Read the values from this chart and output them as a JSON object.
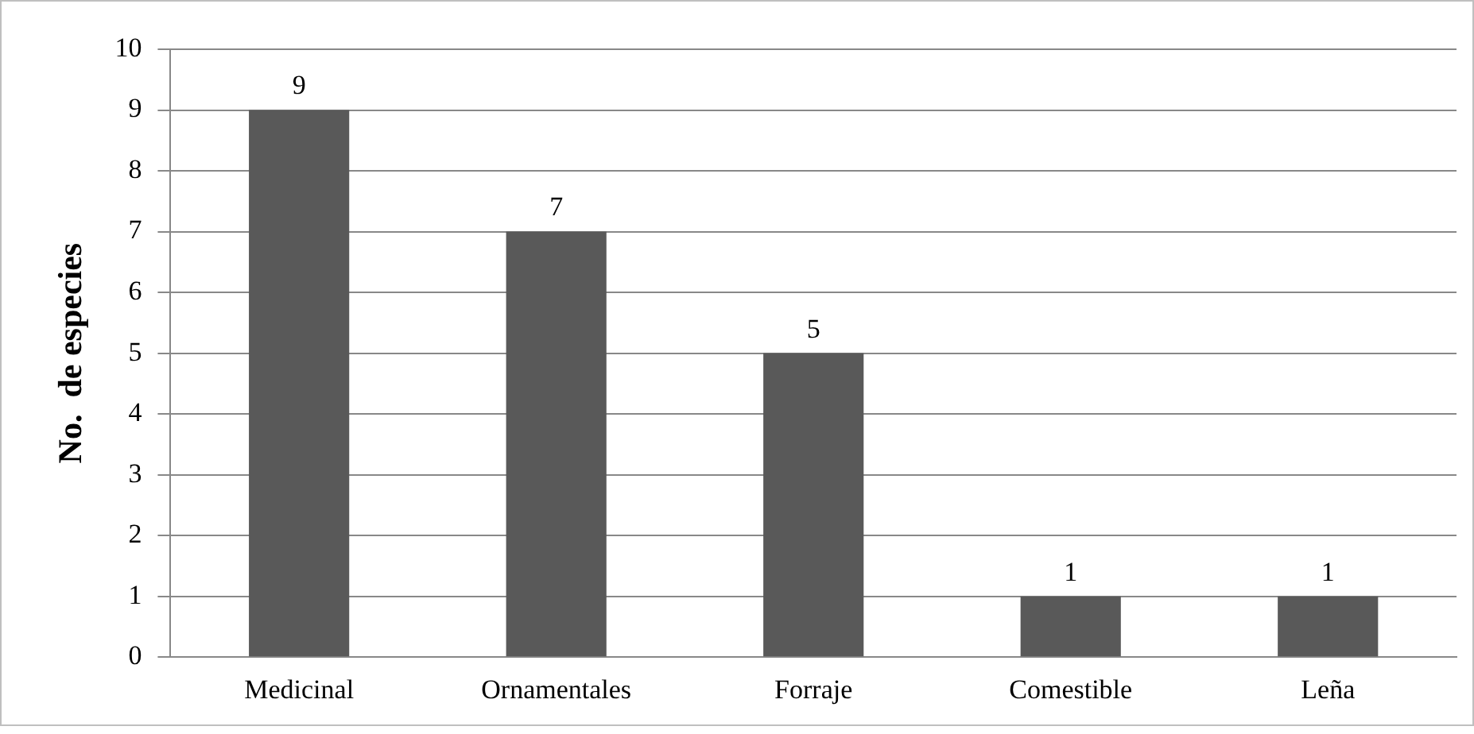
{
  "chart_data": {
    "type": "bar",
    "ylabel": "No.  de especies",
    "categories": [
      "Medicinal",
      "Ornamentales",
      "Forraje",
      "Comestible",
      "Leña"
    ],
    "values": [
      9,
      7,
      5,
      1,
      1
    ],
    "color": "#595959",
    "ylim": [
      0,
      10
    ],
    "yticks": [
      0,
      1,
      2,
      3,
      4,
      5,
      6,
      7,
      8,
      9,
      10
    ],
    "grid": "y",
    "data_labels": true,
    "legend": false
  }
}
